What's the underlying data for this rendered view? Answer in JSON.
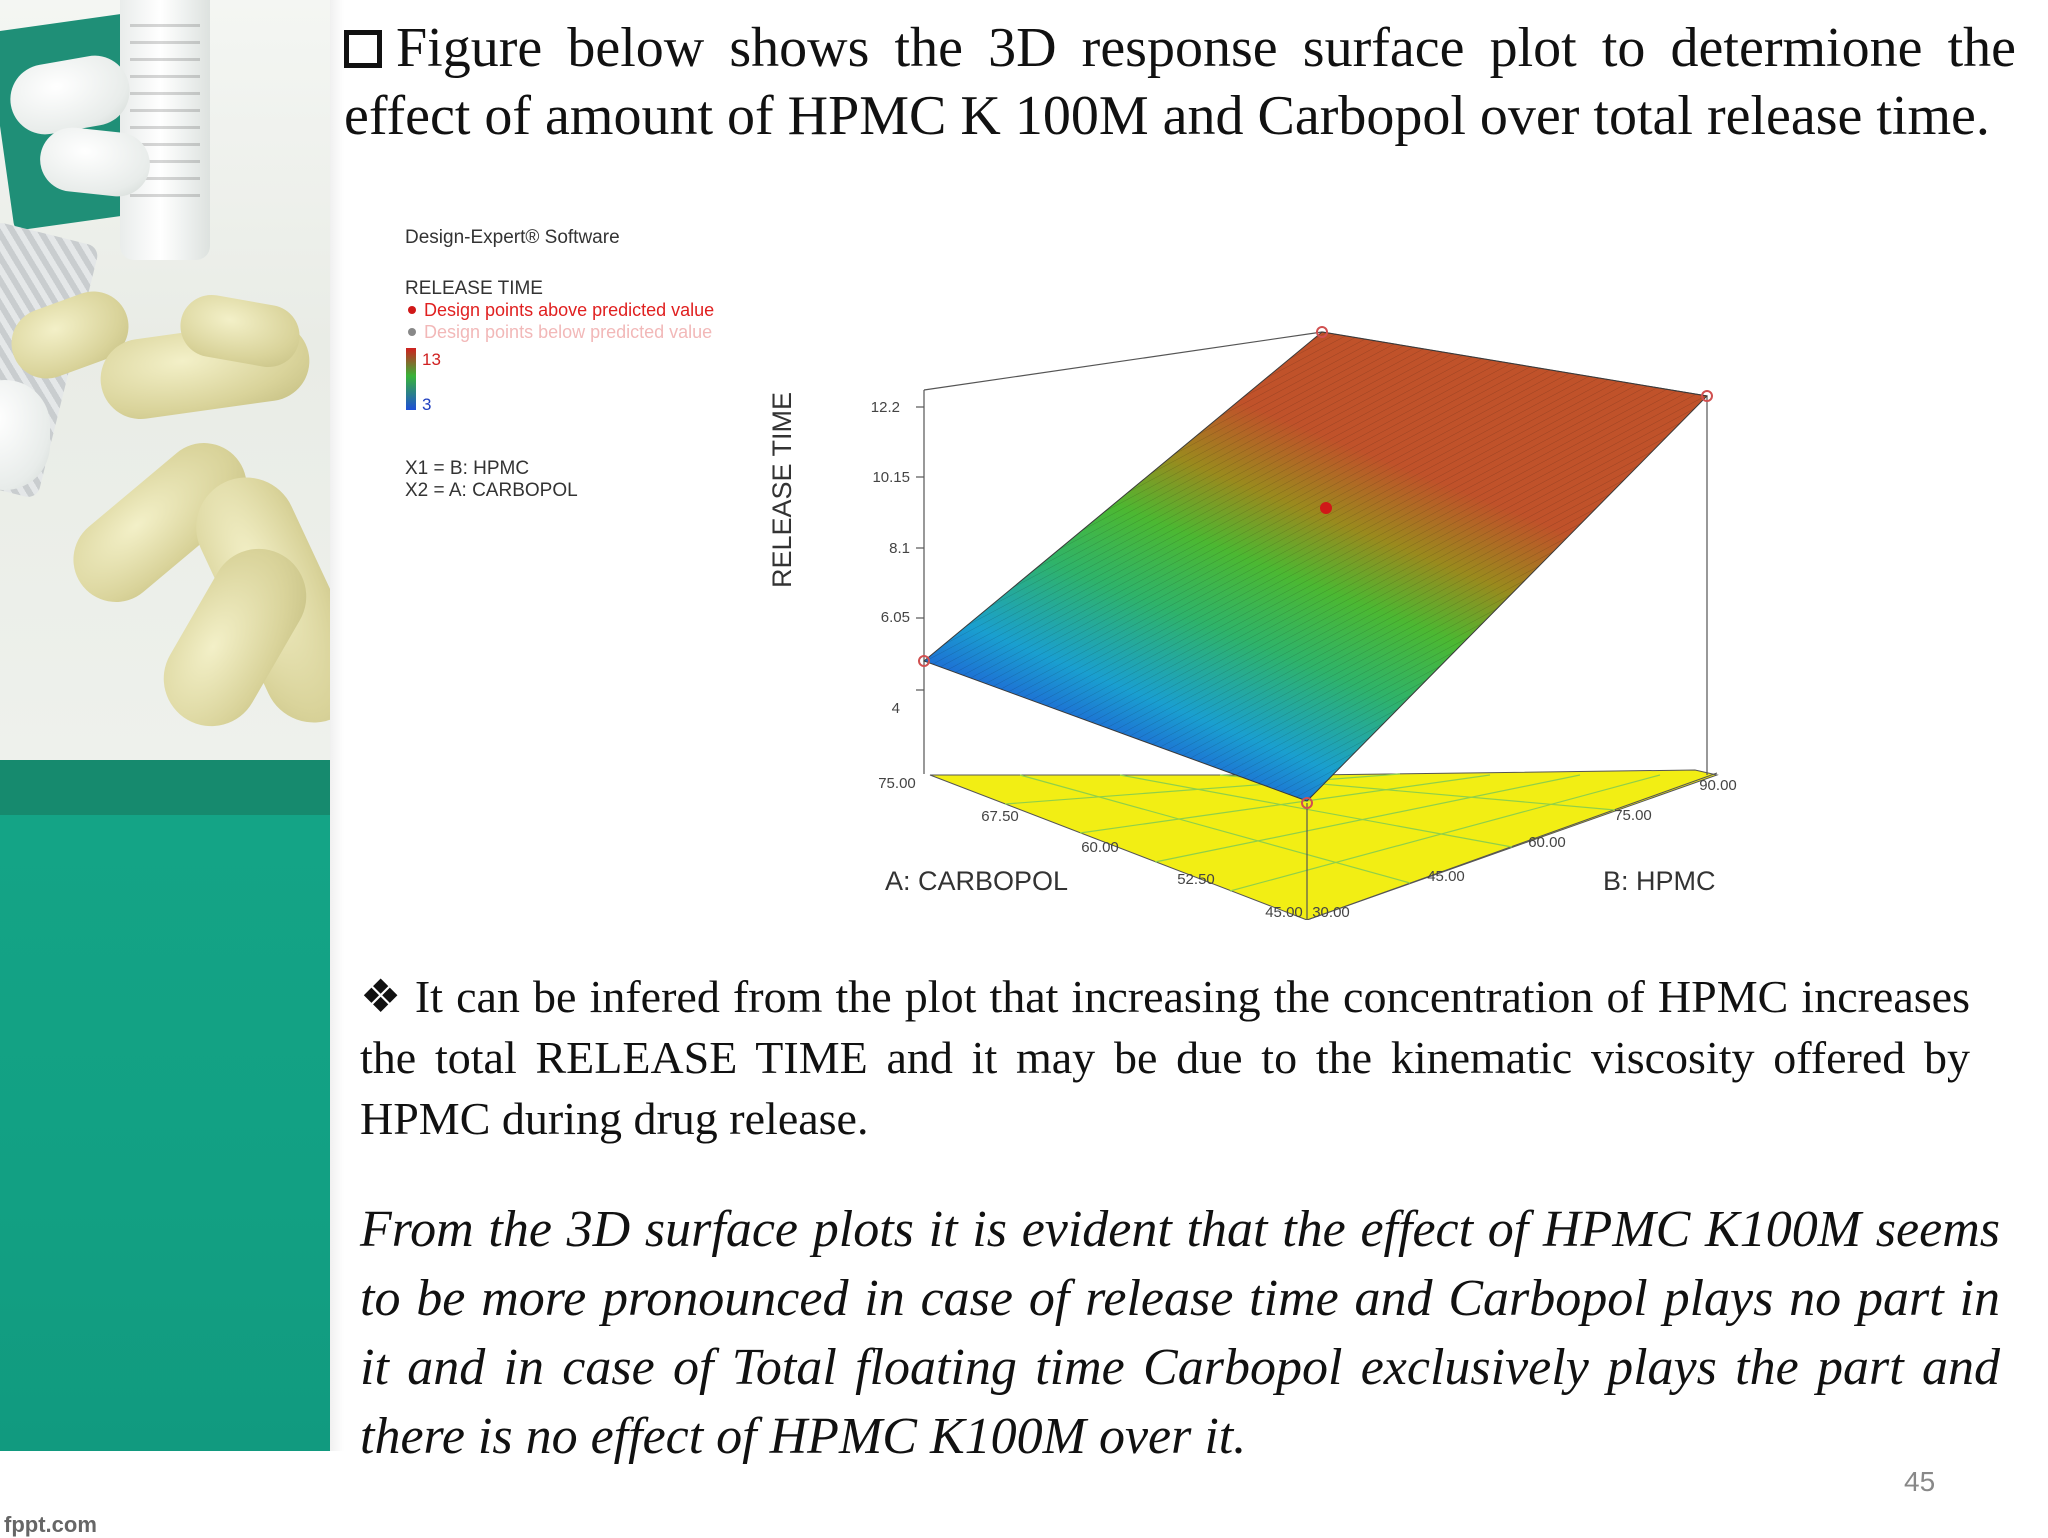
{
  "slide": {
    "heading": "Figure below shows the 3D response surface plot to determione the effect of amount of HPMC K 100M and Carbopol over total release time.",
    "bullet_text": "It can be infered from the plot that increasing the concentration of HPMC increases the total RELEASE TIME and it may be due to the kinematic viscosity offered by HPMC during drug release.",
    "bullet_glyph": "❖",
    "italic_paragraph": "From the 3D surface plots it is evident that the effect of HPMC K100M seems to be more pronounced in case of release time and Carbopol plays no part in it and in case of Total floating time Carbopol exclusively  plays the  part and there is no effect of HPMC K100M over it.",
    "slide_number": "45",
    "footer_brand": "fppt.com"
  },
  "figure": {
    "software": "Design-Expert® Software",
    "response_name": "RELEASE TIME",
    "legend_above": "Design points above predicted value",
    "legend_below": "Design points below predicted value",
    "scale_high": "13",
    "scale_low": "3",
    "factor_x1": "X1 = B: HPMC",
    "factor_x2": "X2 = A: CARBOPOL",
    "z_axis_label": "RELEASE TIME",
    "x_axis_label": "A: CARBOPOL",
    "y_axis_label": "B: HPMC",
    "z_ticks": [
      "4",
      "6.05",
      "8.1",
      "10.15",
      "12.2"
    ],
    "carbopol_ticks": [
      "75.00",
      "67.50",
      "60.00",
      "52.50",
      "45.00"
    ],
    "hpmc_ticks": [
      "30.00",
      "45.00",
      "60.00",
      "75.00",
      "90.00"
    ],
    "colors": {
      "high": "#c0392b",
      "mid": "#3cb33c",
      "low": "#1f5fd6",
      "floor": "#f2ee14",
      "above_point": "#d01818"
    }
  },
  "chart_data": {
    "type": "surface",
    "title": "",
    "xlabel": "A: CARBOPOL",
    "ylabel": "B: HPMC",
    "zlabel": "RELEASE TIME",
    "xlim": [
      45,
      75
    ],
    "ylim": [
      30,
      90
    ],
    "zlim": [
      4,
      12.2
    ],
    "corner_values": [
      {
        "carbopol": 75,
        "hpmc": 30,
        "release_time": 4.2
      },
      {
        "carbopol": 45,
        "hpmc": 30,
        "release_time": 4.2
      },
      {
        "carbopol": 75,
        "hpmc": 90,
        "release_time": 12.2
      },
      {
        "carbopol": 45,
        "hpmc": 90,
        "release_time": 12.2
      }
    ],
    "center_point": {
      "carbopol": 60,
      "hpmc": 60,
      "release_time": 10.6
    }
  }
}
